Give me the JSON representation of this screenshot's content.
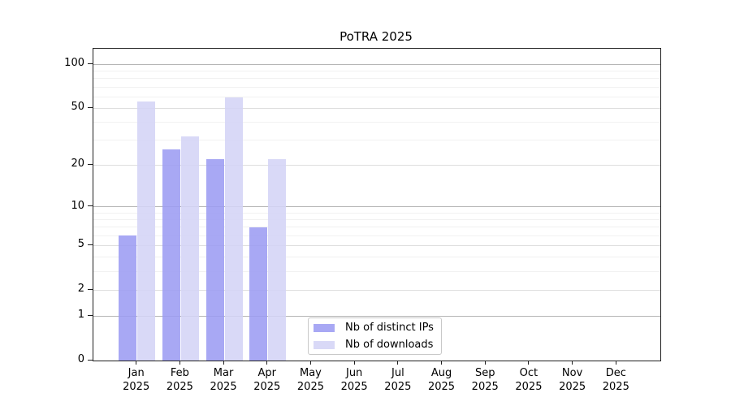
{
  "chart_data": {
    "type": "bar",
    "title": "PoTRA 2025",
    "categories": [
      "Jan",
      "Feb",
      "Mar",
      "Apr",
      "May",
      "Jun",
      "Jul",
      "Aug",
      "Sep",
      "Oct",
      "Nov",
      "Dec"
    ],
    "year_label": "2025",
    "series": [
      {
        "name": "Nb of distinct IPs",
        "color": "#9c9cf2",
        "values": [
          6,
          26,
          22,
          7,
          0,
          0,
          0,
          0,
          0,
          0,
          0,
          0
        ]
      },
      {
        "name": "Nb of downloads",
        "color": "#d4d4f6",
        "values": [
          56,
          32,
          59,
          22,
          0,
          0,
          0,
          0,
          0,
          0,
          0,
          0
        ]
      }
    ],
    "y_axis": {
      "scale": "log1p",
      "max": 128,
      "ticks": [
        0,
        1,
        2,
        5,
        10,
        20,
        50,
        100
      ],
      "minor_ticks": [
        3,
        4,
        6,
        7,
        8,
        9,
        30,
        40,
        60,
        70,
        80,
        90
      ]
    },
    "xlabel": "",
    "ylabel": "",
    "grid": true,
    "legend_position": "lower center"
  },
  "colors": {
    "background": "#ffffff",
    "frame": "#1f1f1f",
    "grid_major": "#dedede",
    "grid_power10": "#b5b5b5",
    "grid_minor": "#f1f1f1",
    "legend_border": "#c8c8c8"
  }
}
